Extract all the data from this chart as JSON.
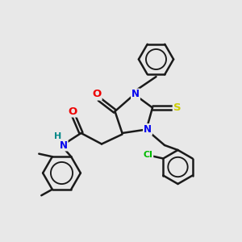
{
  "bg_color": "#e8e8e8",
  "bond_color": "#1a1a1a",
  "bond_width": 1.8,
  "atom_colors": {
    "N": "#0000ee",
    "O": "#ee0000",
    "S": "#cccc00",
    "Cl": "#00bb00",
    "H": "#008888",
    "C": "#1a1a1a"
  },
  "font_size": 8.5
}
